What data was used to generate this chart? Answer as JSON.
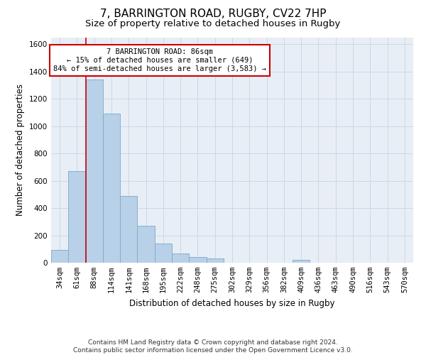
{
  "title": "7, BARRINGTON ROAD, RUGBY, CV22 7HP",
  "subtitle": "Size of property relative to detached houses in Rugby",
  "xlabel": "Distribution of detached houses by size in Rugby",
  "ylabel": "Number of detached properties",
  "categories": [
    "34sqm",
    "61sqm",
    "88sqm",
    "114sqm",
    "141sqm",
    "168sqm",
    "195sqm",
    "222sqm",
    "248sqm",
    "275sqm",
    "302sqm",
    "329sqm",
    "356sqm",
    "382sqm",
    "409sqm",
    "436sqm",
    "463sqm",
    "490sqm",
    "516sqm",
    "543sqm",
    "570sqm"
  ],
  "values": [
    95,
    670,
    1340,
    1090,
    490,
    270,
    140,
    70,
    40,
    33,
    0,
    0,
    0,
    0,
    20,
    0,
    0,
    0,
    0,
    0,
    0
  ],
  "bar_color": "#b8d0e8",
  "bar_edge_color": "#7baac8",
  "annotation_text": "7 BARRINGTON ROAD: 86sqm\n← 15% of detached houses are smaller (649)\n84% of semi-detached houses are larger (3,583) →",
  "annotation_box_color": "#ffffff",
  "annotation_border_color": "#cc0000",
  "vline_color": "#cc0000",
  "ylim": [
    0,
    1650
  ],
  "yticks": [
    0,
    200,
    400,
    600,
    800,
    1000,
    1200,
    1400,
    1600
  ],
  "footer_line1": "Contains HM Land Registry data © Crown copyright and database right 2024.",
  "footer_line2": "Contains public sector information licensed under the Open Government Licence v3.0.",
  "title_fontsize": 11,
  "subtitle_fontsize": 9.5,
  "axis_label_fontsize": 8.5,
  "tick_fontsize": 7.5,
  "annotation_fontsize": 7.5,
  "footer_fontsize": 6.5,
  "background_color": "#ffffff",
  "plot_bg_color": "#e8eef5",
  "grid_color": "#c8d4e0"
}
